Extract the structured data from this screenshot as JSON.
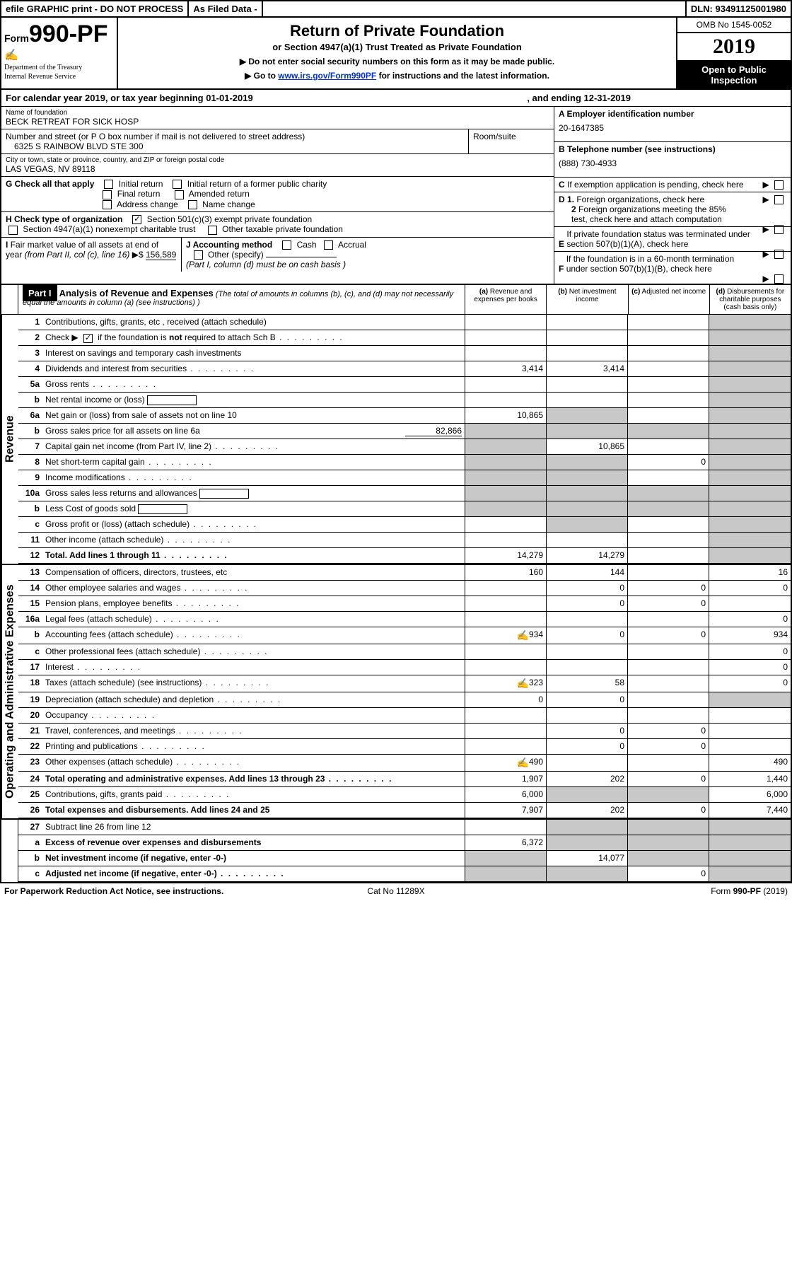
{
  "top": {
    "efile": "efile GRAPHIC print - DO NOT PROCESS",
    "asfiled": "As Filed Data -",
    "dln": "DLN: 93491125001980"
  },
  "header": {
    "formword": "Form",
    "formnum": "990-PF",
    "dept1": "Department of the Treasury",
    "dept2": "Internal Revenue Service",
    "title": "Return of Private Foundation",
    "subtitle": "or Section 4947(a)(1) Trust Treated as Private Foundation",
    "note1": "▶ Do not enter social security numbers on this form as it may be made public.",
    "note2_pre": "▶ Go to ",
    "note2_link": "www.irs.gov/Form990PF",
    "note2_post": " for instructions and the latest information.",
    "omb": "OMB No 1545-0052",
    "year": "2019",
    "open": "Open to Public Inspection"
  },
  "cal": {
    "text_a": "For calendar year 2019, or tax year beginning 01-01-2019",
    "text_b": ", and ending 12-31-2019"
  },
  "ident": {
    "name_lbl": "Name of foundation",
    "name": "BECK RETREAT FOR SICK HOSP",
    "addr_lbl": "Number and street (or P O  box number if mail is not delivered to street address)",
    "addr": "6325 S RAINBOW BLVD STE 300",
    "room_lbl": "Room/suite",
    "city_lbl": "City or town, state or province, country, and ZIP or foreign postal code",
    "city": "LAS VEGAS, NV  89118",
    "A_lbl": "A Employer identification number",
    "A_val": "20-1647385",
    "B_lbl": "B Telephone number (see instructions)",
    "B_val": "(888) 730-4933",
    "C_lbl": "C If exemption application is pending, check here",
    "D1": "D 1. Foreign organizations, check here",
    "D2": "2 Foreign organizations meeting the 85% test, check here and attach computation",
    "E": "E  If private foundation status was terminated under section 507(b)(1)(A), check here",
    "F": "F  If the foundation is in a 60-month termination under section 507(b)(1)(B), check here"
  },
  "G": {
    "lbl": "G Check all that apply",
    "o1": "Initial return",
    "o2": "Initial return of a former public charity",
    "o3": "Final return",
    "o4": "Amended return",
    "o5": "Address change",
    "o6": "Name change"
  },
  "H": {
    "lbl": "H Check type of organization",
    "o1": "Section 501(c)(3) exempt private foundation",
    "o2": "Section 4947(a)(1) nonexempt charitable trust",
    "o3": "Other taxable private foundation"
  },
  "I": {
    "lbl": "I Fair market value of all assets at end of year (from Part II, col  (c), line 16) ▶$",
    "val": "156,589"
  },
  "J": {
    "lbl": "J Accounting method",
    "o1": "Cash",
    "o2": "Accrual",
    "o3": "Other (specify)",
    "note": "(Part I, column (d) must be on cash basis )"
  },
  "part1": {
    "lbl": "Part I",
    "title": "Analysis of Revenue and Expenses",
    "desc": "(The total of amounts in columns (b), (c), and (d) may not necessarily equal the amounts in column (a) (see instructions) )",
    "col_a": "(a) Revenue and expenses per books",
    "col_b": "(b) Net investment income",
    "col_c": "(c) Adjusted net income",
    "col_d": "(d) Disbursements for charitable purposes (cash basis only)",
    "side_rev": "Revenue",
    "side_exp": "Operating and Administrative Expenses"
  },
  "rows": [
    {
      "ln": "1",
      "desc": "Contributions, gifts, grants, etc , received (attach schedule)",
      "a": "",
      "b": "",
      "c": "",
      "d": "",
      "ds": true
    },
    {
      "ln": "2",
      "desc": "Check ▶ ☑ if the foundation is not required to attach Sch B",
      "a": "",
      "b": "",
      "c": "",
      "d": "",
      "ds": true,
      "checked": true,
      "dots": true
    },
    {
      "ln": "3",
      "desc": "Interest on savings and temporary cash investments",
      "a": "",
      "b": "",
      "c": "",
      "d": "",
      "ds": true
    },
    {
      "ln": "4",
      "desc": "Dividends and interest from securities",
      "a": "3,414",
      "b": "3,414",
      "c": "",
      "d": "",
      "ds": true,
      "dots": true
    },
    {
      "ln": "5a",
      "desc": "Gross rents",
      "a": "",
      "b": "",
      "c": "",
      "d": "",
      "ds": true,
      "dots": true
    },
    {
      "ln": "b",
      "desc": "Net rental income or (loss)",
      "a": "",
      "b": "",
      "c": "",
      "d": "",
      "ds": true,
      "input": true
    },
    {
      "ln": "6a",
      "desc": "Net gain or (loss) from sale of assets not on line 10",
      "a": "10,865",
      "b": "",
      "c": "",
      "d": "",
      "ds": true,
      "bshade": true
    },
    {
      "ln": "b",
      "desc": "Gross sales price for all assets on line 6a",
      "trail": "82,866",
      "a": "",
      "b": "",
      "c": "",
      "d": "",
      "ds": true,
      "allshade": true
    },
    {
      "ln": "7",
      "desc": "Capital gain net income (from Part IV, line 2)",
      "a": "",
      "b": "10,865",
      "c": "",
      "d": "",
      "ashade": true,
      "ds": true,
      "dots": true
    },
    {
      "ln": "8",
      "desc": "Net short-term capital gain",
      "a": "",
      "b": "",
      "c": "0",
      "d": "",
      "ashade": true,
      "bshade": true,
      "ds": true,
      "dots": true
    },
    {
      "ln": "9",
      "desc": "Income modifications",
      "a": "",
      "b": "",
      "c": "",
      "d": "",
      "ashade": true,
      "bshade": true,
      "ds": true,
      "dots": true
    },
    {
      "ln": "10a",
      "desc": "Gross sales less returns and allowances",
      "a": "",
      "b": "",
      "c": "",
      "d": "",
      "ds": true,
      "allshade": true,
      "input": true
    },
    {
      "ln": "b",
      "desc": "Less  Cost of goods sold",
      "a": "",
      "b": "",
      "c": "",
      "d": "",
      "ds": true,
      "allshade": true,
      "input": true
    },
    {
      "ln": "c",
      "desc": "Gross profit or (loss) (attach schedule)",
      "a": "",
      "b": "",
      "c": "",
      "d": "",
      "ashade": false,
      "bshade": true,
      "ds": true,
      "dots": true
    },
    {
      "ln": "11",
      "desc": "Other income (attach schedule)",
      "a": "",
      "b": "",
      "c": "",
      "d": "",
      "ds": true,
      "dots": true
    },
    {
      "ln": "12",
      "desc": "Total. Add lines 1 through 11",
      "a": "14,279",
      "b": "14,279",
      "c": "",
      "d": "",
      "bold": true,
      "ds": true,
      "dots": true
    }
  ],
  "exprows": [
    {
      "ln": "13",
      "desc": "Compensation of officers, directors, trustees, etc",
      "a": "160",
      "b": "144",
      "c": "",
      "d": "16"
    },
    {
      "ln": "14",
      "desc": "Other employee salaries and wages",
      "a": "",
      "b": "0",
      "c": "0",
      "d": "0",
      "dots": true
    },
    {
      "ln": "15",
      "desc": "Pension plans, employee benefits",
      "a": "",
      "b": "0",
      "c": "0",
      "d": "",
      "dots": true
    },
    {
      "ln": "16a",
      "desc": "Legal fees (attach schedule)",
      "a": "",
      "b": "",
      "c": "",
      "d": "0",
      "dots": true
    },
    {
      "ln": "b",
      "desc": "Accounting fees (attach schedule)",
      "a": "934",
      "b": "0",
      "c": "0",
      "d": "934",
      "dots": true,
      "icon": true
    },
    {
      "ln": "c",
      "desc": "Other professional fees (attach schedule)",
      "a": "",
      "b": "",
      "c": "",
      "d": "0",
      "dots": true
    },
    {
      "ln": "17",
      "desc": "Interest",
      "a": "",
      "b": "",
      "c": "",
      "d": "0",
      "dots": true
    },
    {
      "ln": "18",
      "desc": "Taxes (attach schedule) (see instructions)",
      "a": "323",
      "b": "58",
      "c": "",
      "d": "0",
      "dots": true,
      "icon": true
    },
    {
      "ln": "19",
      "desc": "Depreciation (attach schedule) and depletion",
      "a": "0",
      "b": "0",
      "c": "",
      "d": "",
      "dshade": true,
      "dots": true
    },
    {
      "ln": "20",
      "desc": "Occupancy",
      "a": "",
      "b": "",
      "c": "",
      "d": "",
      "dots": true
    },
    {
      "ln": "21",
      "desc": "Travel, conferences, and meetings",
      "a": "",
      "b": "0",
      "c": "0",
      "d": "",
      "dots": true
    },
    {
      "ln": "22",
      "desc": "Printing and publications",
      "a": "",
      "b": "0",
      "c": "0",
      "d": "",
      "dots": true
    },
    {
      "ln": "23",
      "desc": "Other expenses (attach schedule)",
      "a": "490",
      "b": "",
      "c": "",
      "d": "490",
      "dots": true,
      "icon": true
    },
    {
      "ln": "24",
      "desc": "Total operating and administrative expenses. Add lines 13 through 23",
      "a": "1,907",
      "b": "202",
      "c": "0",
      "d": "1,440",
      "bold": true,
      "dots": true
    },
    {
      "ln": "25",
      "desc": "Contributions, gifts, grants paid",
      "a": "6,000",
      "b": "",
      "c": "",
      "d": "6,000",
      "dots": true,
      "bshade": true,
      "cshade": true
    },
    {
      "ln": "26",
      "desc": "Total expenses and disbursements. Add lines 24 and 25",
      "a": "7,907",
      "b": "202",
      "c": "0",
      "d": "7,440",
      "bold": true
    }
  ],
  "bottomrows": [
    {
      "ln": "27",
      "desc": "Subtract line 26 from line 12",
      "a": "",
      "b": "",
      "c": "",
      "d": "",
      "allshade_bcd": true
    },
    {
      "ln": "a",
      "desc": "Excess of revenue over expenses and disbursements",
      "a": "6,372",
      "b": "",
      "c": "",
      "d": "",
      "bold": true,
      "allshade_bcd": true
    },
    {
      "ln": "b",
      "desc": "Net investment income (if negative, enter -0-)",
      "a": "",
      "b": "14,077",
      "c": "",
      "d": "",
      "bold": true,
      "ashade": true,
      "cshade": true,
      "dshade": true
    },
    {
      "ln": "c",
      "desc": "Adjusted net income (if negative, enter -0-)",
      "a": "",
      "b": "",
      "c": "0",
      "d": "",
      "bold": true,
      "ashade": true,
      "bshade": true,
      "dshade": true,
      "dots": true
    }
  ],
  "footer": {
    "left": "For Paperwork Reduction Act Notice, see instructions.",
    "mid": "Cat No 11289X",
    "right": "Form 990-PF (2019)"
  }
}
